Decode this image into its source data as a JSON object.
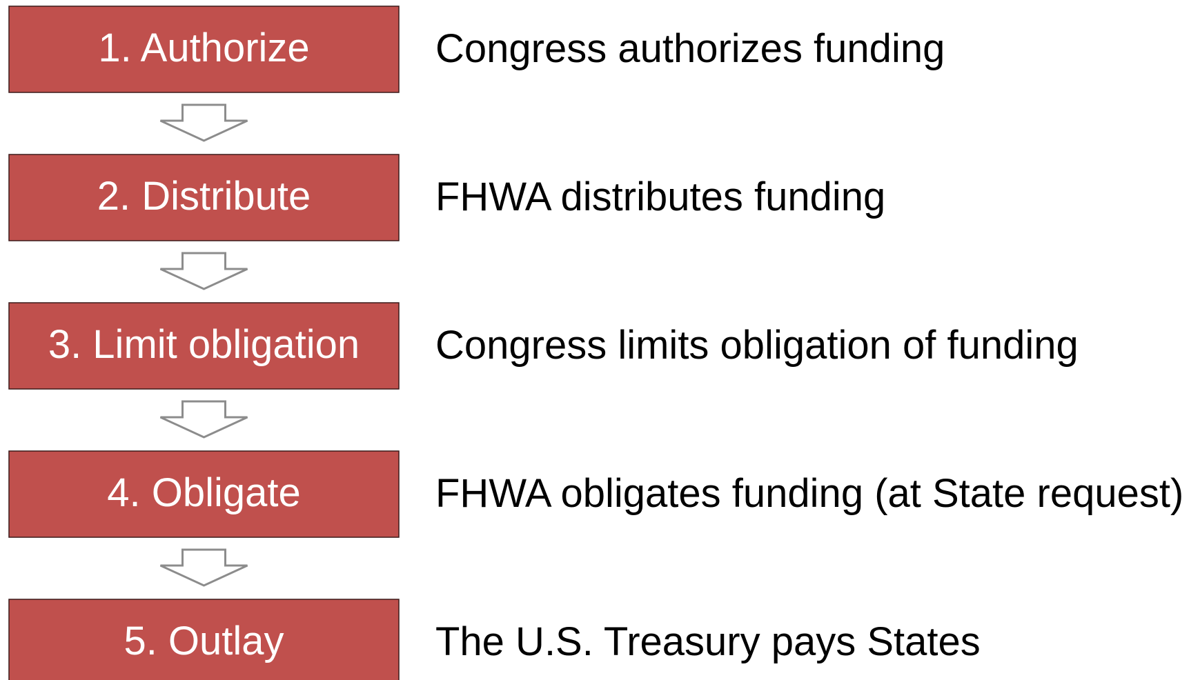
{
  "steps": [
    {
      "label": "1. Authorize",
      "description": "Congress authorizes funding"
    },
    {
      "label": "2. Distribute",
      "description": "FHWA distributes funding"
    },
    {
      "label": "3. Limit obligation",
      "description": "Congress limits obligation of funding"
    },
    {
      "label": "4. Obligate",
      "description": "FHWA obligates funding (at State request)"
    },
    {
      "label": "5. Outlay",
      "description": "The U.S. Treasury pays States"
    }
  ]
}
